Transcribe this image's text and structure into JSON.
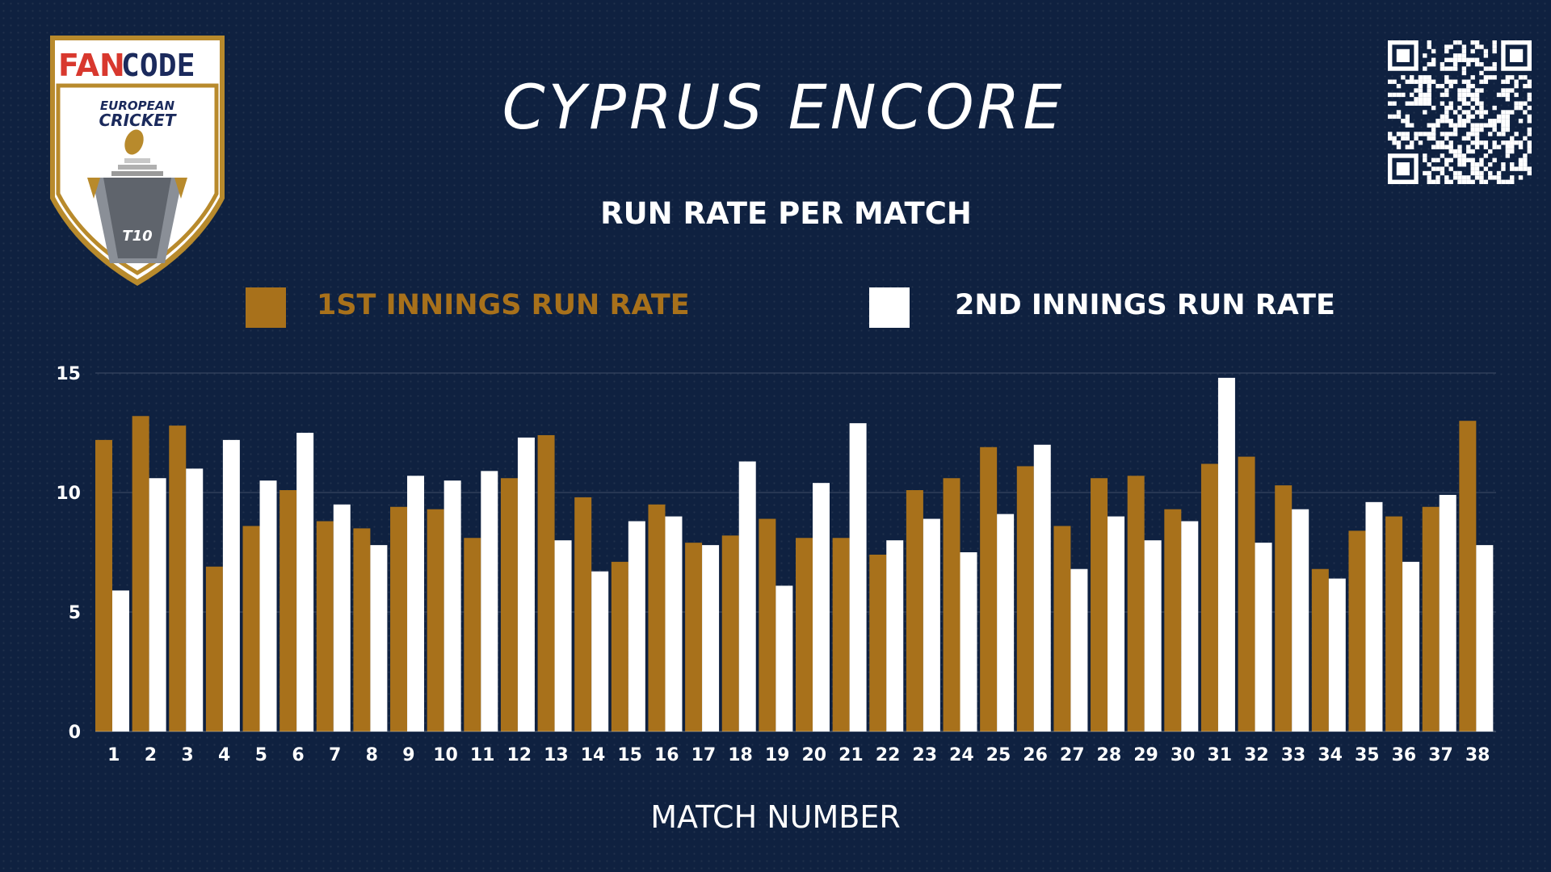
{
  "logo": {
    "brand_fan": "FAN",
    "brand_code": "CODE",
    "line1": "EUROPEAN",
    "line2": "CRICKET",
    "badge": "T10"
  },
  "header": {
    "title": "CYPRUS ENCORE"
  },
  "colors": {
    "background": "#0f2140",
    "first_innings": "#a8711b",
    "second_innings": "#ffffff",
    "brand_red": "#d8382e",
    "brand_navy": "#1b2a5c"
  },
  "chart_data": {
    "type": "bar",
    "title": "RUN RATE PER MATCH",
    "xlabel": "MATCH NUMBER",
    "ylabel": "",
    "ylim": [
      0,
      15
    ],
    "yticks": [
      0,
      5,
      10,
      15
    ],
    "grid": true,
    "legend": "top",
    "categories": [
      "1",
      "2",
      "3",
      "4",
      "5",
      "6",
      "7",
      "8",
      "9",
      "10",
      "11",
      "12",
      "13",
      "14",
      "15",
      "16",
      "17",
      "18",
      "19",
      "20",
      "21",
      "22",
      "23",
      "24",
      "25",
      "26",
      "27",
      "28",
      "29",
      "30",
      "31",
      "32",
      "33",
      "34",
      "35",
      "36",
      "37",
      "38"
    ],
    "series": [
      {
        "name": "1ST INNINGS RUN RATE",
        "color": "#a8711b",
        "values": [
          12.2,
          13.2,
          12.8,
          6.9,
          8.6,
          10.1,
          8.8,
          8.5,
          9.4,
          9.3,
          8.1,
          10.6,
          12.4,
          9.8,
          7.1,
          9.5,
          7.9,
          8.2,
          8.9,
          8.1,
          8.1,
          7.4,
          10.1,
          10.6,
          11.9,
          11.1,
          8.6,
          10.6,
          10.7,
          9.3,
          11.2,
          11.5,
          10.3,
          6.8,
          8.4,
          9.0,
          9.4,
          13.0
        ]
      },
      {
        "name": "2ND INNINGS RUN RATE",
        "color": "#ffffff",
        "values": [
          5.9,
          10.6,
          11.0,
          12.2,
          10.5,
          12.5,
          9.5,
          7.8,
          10.7,
          10.5,
          10.9,
          12.3,
          8.0,
          6.7,
          8.8,
          9.0,
          7.8,
          11.3,
          6.1,
          10.4,
          12.9,
          8.0,
          8.9,
          7.5,
          9.1,
          12.0,
          6.8,
          9.0,
          8.0,
          8.8,
          14.8,
          7.9,
          9.3,
          6.4,
          9.6,
          7.1,
          9.9,
          7.8
        ]
      }
    ]
  }
}
